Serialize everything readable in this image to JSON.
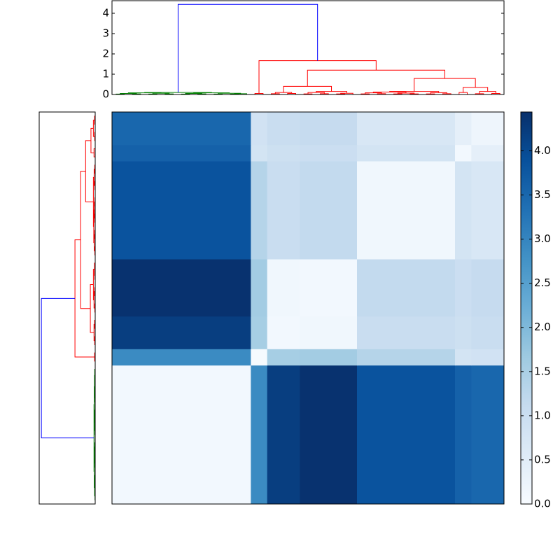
{
  "chart_data": {
    "type": "clustermap",
    "leaf_lim": [
      0,
      48
    ],
    "height_lim": [
      0,
      4.62
    ],
    "height_ticks": [
      0,
      1,
      2,
      3,
      4
    ],
    "links": [
      {
        "x": [
          0.5,
          0.5,
          1.5,
          1.5
        ],
        "y": [
          0,
          0.02,
          0.02,
          0
        ],
        "color": "#008000"
      },
      {
        "x": [
          2.5,
          2.5,
          3.5,
          3.5
        ],
        "y": [
          0,
          0.03,
          0.03,
          0
        ],
        "color": "#008000"
      },
      {
        "x": [
          1,
          1,
          3,
          3
        ],
        "y": [
          0.02,
          0.05,
          0.05,
          0.03
        ],
        "color": "#008000"
      },
      {
        "x": [
          4.5,
          4.5,
          5.5,
          5.5
        ],
        "y": [
          0,
          0.02,
          0.02,
          0
        ],
        "color": "#008000"
      },
      {
        "x": [
          6.5,
          6.5,
          7.5,
          7.5
        ],
        "y": [
          0,
          0.03,
          0.03,
          0
        ],
        "color": "#008000"
      },
      {
        "x": [
          5,
          5,
          7,
          7
        ],
        "y": [
          0.02,
          0.06,
          0.06,
          0.03
        ],
        "color": "#008000"
      },
      {
        "x": [
          2,
          2,
          6,
          6
        ],
        "y": [
          0.05,
          0.08,
          0.08,
          0.06
        ],
        "color": "#008000"
      },
      {
        "x": [
          8.5,
          8.5,
          9.5,
          9.5
        ],
        "y": [
          0,
          0.02,
          0.02,
          0
        ],
        "color": "#008000"
      },
      {
        "x": [
          10.5,
          10.5,
          11.5,
          11.5
        ],
        "y": [
          0,
          0.03,
          0.03,
          0
        ],
        "color": "#008000"
      },
      {
        "x": [
          9,
          9,
          11,
          11
        ],
        "y": [
          0.02,
          0.05,
          0.05,
          0.03
        ],
        "color": "#008000"
      },
      {
        "x": [
          12.5,
          12.5,
          13.5,
          13.5
        ],
        "y": [
          0,
          0.02,
          0.02,
          0
        ],
        "color": "#008000"
      },
      {
        "x": [
          14.5,
          14.5,
          15.5,
          15.5
        ],
        "y": [
          0,
          0.02,
          0.02,
          0
        ],
        "color": "#008000"
      },
      {
        "x": [
          15,
          15,
          16.5,
          16.5
        ],
        "y": [
          0.02,
          0.04,
          0.04,
          0
        ],
        "color": "#008000"
      },
      {
        "x": [
          13,
          13,
          15.75,
          15.75
        ],
        "y": [
          0.02,
          0.06,
          0.06,
          0.04
        ],
        "color": "#008000"
      },
      {
        "x": [
          10,
          10,
          14.375,
          14.375
        ],
        "y": [
          0.05,
          0.08,
          0.08,
          0.06
        ],
        "color": "#008000"
      },
      {
        "x": [
          4,
          4,
          12.1875,
          12.1875
        ],
        "y": [
          0.08,
          0.1,
          0.1,
          0.08
        ],
        "color": "#008000"
      },
      {
        "x": [
          17.5,
          17.5,
          18.5,
          18.5
        ],
        "y": [
          0,
          0.05,
          0.05,
          0
        ],
        "color": "#ff0000"
      },
      {
        "x": [
          19.5,
          19.5,
          20.5,
          20.5
        ],
        "y": [
          0,
          0.04,
          0.04,
          0
        ],
        "color": "#ff0000"
      },
      {
        "x": [
          21.5,
          21.5,
          22.5,
          22.5
        ],
        "y": [
          0,
          0.05,
          0.05,
          0
        ],
        "color": "#ff0000"
      },
      {
        "x": [
          20,
          20,
          22,
          22
        ],
        "y": [
          0.04,
          0.1,
          0.1,
          0.05
        ],
        "color": "#ff0000"
      },
      {
        "x": [
          23.5,
          23.5,
          24.5,
          24.5
        ],
        "y": [
          0,
          0.03,
          0.03,
          0
        ],
        "color": "#ff0000"
      },
      {
        "x": [
          25.5,
          25.5,
          26.5,
          26.5
        ],
        "y": [
          0,
          0.04,
          0.04,
          0
        ],
        "color": "#ff0000"
      },
      {
        "x": [
          24,
          24,
          26,
          26
        ],
        "y": [
          0.03,
          0.1,
          0.1,
          0.04
        ],
        "color": "#ff0000"
      },
      {
        "x": [
          27.5,
          27.5,
          28.5,
          28.5
        ],
        "y": [
          0,
          0.03,
          0.03,
          0
        ],
        "color": "#ff0000"
      },
      {
        "x": [
          28,
          28,
          29.5,
          29.5
        ],
        "y": [
          0.03,
          0.06,
          0.06,
          0
        ],
        "color": "#ff0000"
      },
      {
        "x": [
          25,
          25,
          28.75,
          28.75
        ],
        "y": [
          0.1,
          0.15,
          0.15,
          0.06
        ],
        "color": "#ff0000"
      },
      {
        "x": [
          21,
          21,
          26.875,
          26.875
        ],
        "y": [
          0.1,
          0.4,
          0.4,
          0.15
        ],
        "color": "#ff0000"
      },
      {
        "x": [
          30.5,
          30.5,
          31.5,
          31.5
        ],
        "y": [
          0,
          0.03,
          0.03,
          0
        ],
        "color": "#ff0000"
      },
      {
        "x": [
          32.5,
          32.5,
          33.5,
          33.5
        ],
        "y": [
          0,
          0.04,
          0.04,
          0
        ],
        "color": "#ff0000"
      },
      {
        "x": [
          31,
          31,
          33,
          33
        ],
        "y": [
          0.03,
          0.08,
          0.08,
          0.04
        ],
        "color": "#ff0000"
      },
      {
        "x": [
          34.5,
          34.5,
          35.5,
          35.5
        ],
        "y": [
          0,
          0.03,
          0.03,
          0
        ],
        "color": "#ff0000"
      },
      {
        "x": [
          36.5,
          36.5,
          37.5,
          37.5
        ],
        "y": [
          0,
          0.03,
          0.03,
          0
        ],
        "color": "#ff0000"
      },
      {
        "x": [
          35,
          35,
          37,
          37
        ],
        "y": [
          0.03,
          0.07,
          0.07,
          0.03
        ],
        "color": "#ff0000"
      },
      {
        "x": [
          32,
          32,
          36,
          36
        ],
        "y": [
          0.08,
          0.12,
          0.12,
          0.07
        ],
        "color": "#ff0000"
      },
      {
        "x": [
          38.5,
          38.5,
          39.5,
          39.5
        ],
        "y": [
          0,
          0.03,
          0.03,
          0
        ],
        "color": "#ff0000"
      },
      {
        "x": [
          40.5,
          40.5,
          41.5,
          41.5
        ],
        "y": [
          0,
          0.04,
          0.04,
          0
        ],
        "color": "#ff0000"
      },
      {
        "x": [
          39,
          39,
          41,
          41
        ],
        "y": [
          0.03,
          0.09,
          0.09,
          0.04
        ],
        "color": "#ff0000"
      },
      {
        "x": [
          34,
          34,
          40,
          40
        ],
        "y": [
          0.12,
          0.15,
          0.15,
          0.09
        ],
        "color": "#ff0000"
      },
      {
        "x": [
          42.5,
          42.5,
          43.5,
          43.5
        ],
        "y": [
          0,
          0.1,
          0.1,
          0
        ],
        "color": "#ff0000"
      },
      {
        "x": [
          44.5,
          44.5,
          45.5,
          45.5
        ],
        "y": [
          0,
          0.04,
          0.04,
          0
        ],
        "color": "#ff0000"
      },
      {
        "x": [
          46.5,
          46.5,
          47.5,
          47.5
        ],
        "y": [
          0,
          0.05,
          0.05,
          0
        ],
        "color": "#ff0000"
      },
      {
        "x": [
          45,
          45,
          47,
          47
        ],
        "y": [
          0.04,
          0.15,
          0.15,
          0.05
        ],
        "color": "#ff0000"
      },
      {
        "x": [
          43,
          43,
          46,
          46
        ],
        "y": [
          0.1,
          0.35,
          0.35,
          0.15
        ],
        "color": "#ff0000"
      },
      {
        "x": [
          37,
          37,
          44.5,
          44.5
        ],
        "y": [
          0.15,
          0.79,
          0.79,
          0.35
        ],
        "color": "#ff0000"
      },
      {
        "x": [
          23.9375,
          23.9375,
          40.75,
          40.75
        ],
        "y": [
          0.4,
          1.2,
          1.2,
          0.79
        ],
        "color": "#ff0000"
      },
      {
        "x": [
          18,
          18,
          32.34375,
          32.34375
        ],
        "y": [
          0.05,
          1.67,
          1.67,
          1.2
        ],
        "color": "#ff0000"
      },
      {
        "x": [
          8.09375,
          8.09375,
          25.171875,
          25.171875
        ],
        "y": [
          0.1,
          4.44,
          4.44,
          1.67
        ],
        "color": "#0000ff"
      }
    ],
    "groups": [
      0,
      17,
      19,
      23,
      30,
      42,
      44,
      48
    ],
    "matrix": [
      [
        0.1,
        2.9,
        4.2,
        4.4,
        3.85,
        3.6,
        3.5
      ],
      [
        2.9,
        0.05,
        1.55,
        1.6,
        1.35,
        0.8,
        0.85
      ],
      [
        4.2,
        1.55,
        0.1,
        0.15,
        1.05,
        0.95,
        1.05
      ],
      [
        4.4,
        1.6,
        0.15,
        0.1,
        1.15,
        1.0,
        1.1
      ],
      [
        3.85,
        1.35,
        1.05,
        1.15,
        0.15,
        0.8,
        0.7
      ],
      [
        3.6,
        0.8,
        0.95,
        1.0,
        0.8,
        0.1,
        0.4
      ],
      [
        3.5,
        0.85,
        1.05,
        1.1,
        0.7,
        0.4,
        0.2
      ]
    ],
    "clim": [
      0,
      4.44
    ],
    "colormap": [
      "#f7fbff",
      "#deebf7",
      "#c6dbef",
      "#9ecae1",
      "#6baed6",
      "#4292c6",
      "#2171b5",
      "#08519c",
      "#08306b"
    ],
    "cticks": [
      {
        "value": 0,
        "label": "0.0"
      },
      {
        "value": 0.5,
        "label": "0.5"
      },
      {
        "value": 1,
        "label": "1.0"
      },
      {
        "value": 1.5,
        "label": "1.5"
      },
      {
        "value": 2,
        "label": "2.0"
      },
      {
        "value": 2.5,
        "label": "2.5"
      },
      {
        "value": 3,
        "label": "3.0"
      },
      {
        "value": 3.5,
        "label": "3.5"
      },
      {
        "value": 4,
        "label": "4.0"
      }
    ]
  }
}
